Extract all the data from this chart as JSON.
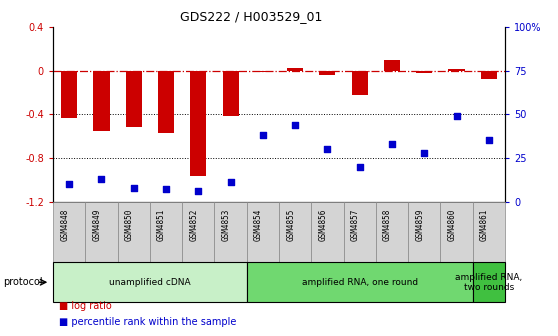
{
  "title": "GDS222 / H003529_01",
  "samples": [
    "GSM4848",
    "GSM4849",
    "GSM4850",
    "GSM4851",
    "GSM4852",
    "GSM4853",
    "GSM4854",
    "GSM4855",
    "GSM4856",
    "GSM4857",
    "GSM4858",
    "GSM4859",
    "GSM4860",
    "GSM4861"
  ],
  "log_ratio": [
    -0.43,
    -0.55,
    -0.52,
    -0.57,
    -0.97,
    -0.42,
    -0.01,
    0.02,
    -0.04,
    -0.22,
    0.1,
    -0.02,
    0.01,
    -0.08
  ],
  "percentile": [
    10,
    13,
    8,
    7,
    6,
    11,
    38,
    44,
    30,
    20,
    33,
    28,
    49,
    35
  ],
  "ylim_left": [
    -1.2,
    0.4
  ],
  "ylim_right": [
    0,
    100
  ],
  "bar_color": "#cc0000",
  "dot_color": "#0000cc",
  "dashed_line_color": "#cc0000",
  "protocol_groups": [
    {
      "label": "unamplified cDNA",
      "start": 0,
      "end": 6,
      "color": "#c8f0c8"
    },
    {
      "label": "amplified RNA, one round",
      "start": 6,
      "end": 13,
      "color": "#70d870"
    },
    {
      "label": "amplified RNA,\ntwo rounds",
      "start": 13,
      "end": 14,
      "color": "#40c040"
    }
  ],
  "left_yticks": [
    -1.2,
    -0.8,
    -0.4,
    0.0,
    0.4
  ],
  "left_yticklabels": [
    "-1.2",
    "-0.8",
    "-0.4",
    "0",
    "0.4"
  ],
  "right_yticks": [
    0,
    25,
    50,
    75,
    100
  ],
  "right_yticklabels": [
    "0",
    "25",
    "50",
    "75",
    "100%"
  ],
  "legend_items": [
    {
      "label": "log ratio",
      "color": "#cc0000"
    },
    {
      "label": "percentile rank within the sample",
      "color": "#0000cc"
    }
  ]
}
